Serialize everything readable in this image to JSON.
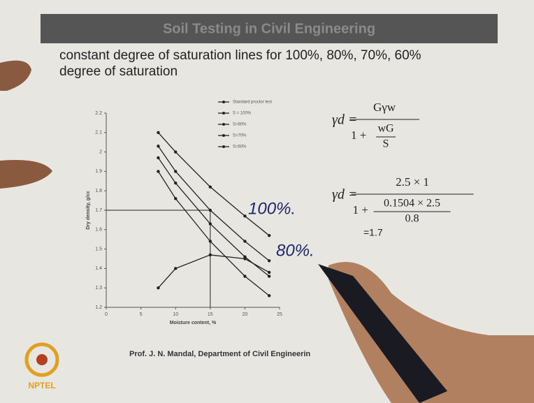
{
  "header": {
    "title": "Soil Testing in Civil Engineering"
  },
  "text": [
    "constant degree of saturation lines for 100%, 80%, 70%, 60%",
    "degree of saturation"
  ],
  "chart_data": {
    "type": "line",
    "x": [
      7.5,
      10,
      15,
      20,
      23.5
    ],
    "series": [
      {
        "name": "Standard proctor test",
        "color": "#222222",
        "values": [
          1.3,
          1.4,
          1.47,
          1.45,
          1.38
        ]
      },
      {
        "name": "S = 100%",
        "color": "#222222",
        "values": [
          2.1,
          2.0,
          1.82,
          1.67,
          1.57
        ]
      },
      {
        "name": "S=80%",
        "color": "#222222",
        "values": [
          2.03,
          1.9,
          1.7,
          1.54,
          1.44
        ]
      },
      {
        "name": "S=70%",
        "color": "#222222",
        "values": [
          1.97,
          1.84,
          1.63,
          1.46,
          1.36
        ]
      },
      {
        "name": "S=60%",
        "color": "#222222",
        "values": [
          1.9,
          1.76,
          1.54,
          1.36,
          1.26
        ]
      }
    ],
    "xlabel": "Moisture content, %",
    "ylabel": "Dry density, g/cc",
    "xlim": [
      0,
      25
    ],
    "xticks": [
      0,
      5,
      10,
      15,
      20,
      25
    ],
    "ylim": [
      1.2,
      2.2
    ],
    "yticks": [
      1.2,
      1.3,
      1.4,
      1.5,
      1.6,
      1.7,
      1.8,
      1.9,
      2,
      2.1,
      2.2
    ],
    "guide": {
      "x": 15,
      "y": 1.7
    }
  },
  "formulas": [
    {
      "lhs": "γd =",
      "numerator": "Gγw",
      "den_lead": "1 +",
      "den_num": "wG",
      "den_den": "S"
    },
    {
      "lhs": "γd =",
      "numerator": "2.5 × 1",
      "den_lead": "1 +",
      "den_num": "0.1504 × 2.5",
      "den_den": "0.8",
      "result": "=1.7"
    }
  ],
  "handwriting": [
    "100%.",
    "80%."
  ],
  "footer": "Prof. J. N. Mandal, Department of Civil Engineerin",
  "logo": "NPTEL"
}
